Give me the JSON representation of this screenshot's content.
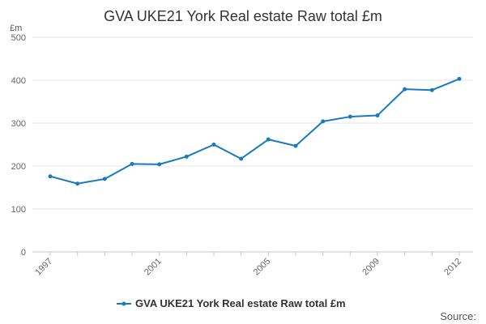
{
  "chart_data": {
    "type": "line",
    "title": "GVA UKE21 York Real estate Raw total £m",
    "unit_label": "£m",
    "x": [
      1997,
      1998,
      1999,
      2000,
      2001,
      2002,
      2003,
      2004,
      2005,
      2006,
      2007,
      2008,
      2009,
      2010,
      2011,
      2012
    ],
    "x_tick_labels": [
      "1997",
      "2001",
      "2005",
      "2009",
      "2012"
    ],
    "y_ticks": [
      0,
      100,
      200,
      300,
      400,
      500
    ],
    "ylim": [
      0,
      500
    ],
    "grid": true,
    "legend_position": "bottom",
    "series": [
      {
        "name": "GVA UKE21 York Real estate Raw total £m",
        "color": "#1a7abf",
        "values": [
          176,
          159,
          170,
          205,
          204,
          222,
          250,
          217,
          262,
          247,
          304,
          315,
          318,
          379,
          377,
          403
        ]
      }
    ],
    "source_label": "Source:"
  }
}
